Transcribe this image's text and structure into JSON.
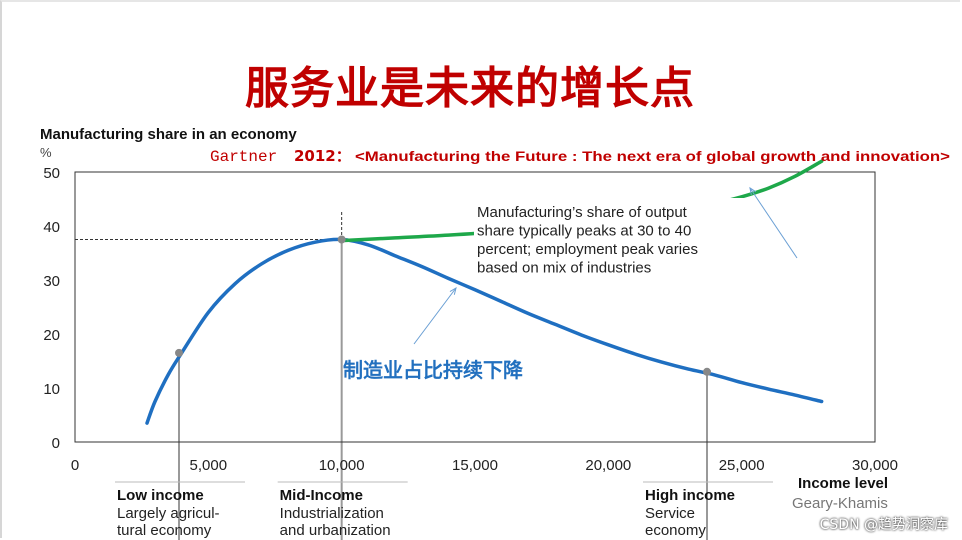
{
  "slide": {
    "title": "服务业是未来的增长点",
    "watermark": "CSDN @趋势洞察库"
  },
  "colors": {
    "title": "#c00000",
    "blue_curve": "#1f6fc1",
    "green_curve": "#1ea84a",
    "source_red": "#c00000",
    "axis": "#333333",
    "annotation_blue": "#2270bf"
  },
  "chart_data": {
    "type": "line",
    "title": "Manufacturing share in an economy",
    "ylabel": "%",
    "xlabel": "Income level",
    "xlabel_note": "Geary-Khamis",
    "xlim": [
      0,
      30000
    ],
    "ylim": [
      0,
      50
    ],
    "xticks": [
      0,
      5000,
      10000,
      15000,
      20000,
      25000,
      30000
    ],
    "xtick_labels": [
      "0",
      "5,000",
      "10,000",
      "15,000",
      "20,000",
      "25,000",
      "30,000"
    ],
    "yticks": [
      0,
      10,
      20,
      30,
      40,
      50
    ],
    "ytick_labels": [
      "0",
      "10",
      "20",
      "30",
      "40",
      "50"
    ],
    "grid": false,
    "series": [
      {
        "role": "observed",
        "color": "#1f6fc1",
        "x": [
          2700,
          3000,
          3500,
          4000,
          5000,
          6000,
          7000,
          8000,
          9000,
          10000,
          11000,
          12000,
          13000,
          14000,
          15000,
          16000,
          17000,
          18000,
          19000,
          20000,
          21000,
          22000,
          23000,
          24000,
          25000,
          26000,
          27000,
          28000
        ],
        "y": [
          3.5,
          7.5,
          12.5,
          16.5,
          24.0,
          29.3,
          33.0,
          35.5,
          37.0,
          37.5,
          36.5,
          34.5,
          32.5,
          30.3,
          28.2,
          26.0,
          23.8,
          21.8,
          19.8,
          18.0,
          16.3,
          14.8,
          13.5,
          12.4,
          11.0,
          9.8,
          8.7,
          7.5
        ]
      },
      {
        "role": "future",
        "color": "#1ea84a",
        "x": [
          10000,
          12000,
          14000,
          16000,
          18000,
          20000,
          22000,
          24000,
          25000,
          26000,
          27000,
          28000
        ],
        "y": [
          37.3,
          37.8,
          38.3,
          39.0,
          40.0,
          41.0,
          42.4,
          44.2,
          45.4,
          47.0,
          49.2,
          52.0
        ]
      }
    ],
    "peak_reference": {
      "x": 10000,
      "y": 37.5
    },
    "markers": [
      {
        "x": 3900,
        "y": 16.5
      },
      {
        "x": 10000,
        "y": 37.5
      },
      {
        "x": 23700,
        "y": 13.0
      }
    ],
    "source_note": {
      "prefix": "Gartner",
      "year": "2012：",
      "text": "<Manufacturing the Future : The next era of global growth and innovation>"
    },
    "annotations": [
      {
        "text": "Manufacturing’s share of output"
      },
      {
        "text": "share typically peaks at 30 to 40"
      },
      {
        "text": "percent; employment peak varies"
      },
      {
        "text": "based on mix of industries"
      }
    ],
    "decline_label": "制造业占比持续下降",
    "stages": [
      {
        "x": 3900,
        "title": "Low income",
        "lines": [
          "Largely agricul-",
          "tural economy"
        ]
      },
      {
        "x": 10000,
        "title": "Mid-Income",
        "lines": [
          "Industrialization",
          "and urbanization"
        ]
      },
      {
        "x": 23700,
        "title": "High income",
        "lines": [
          "Service",
          "economy"
        ]
      }
    ]
  }
}
